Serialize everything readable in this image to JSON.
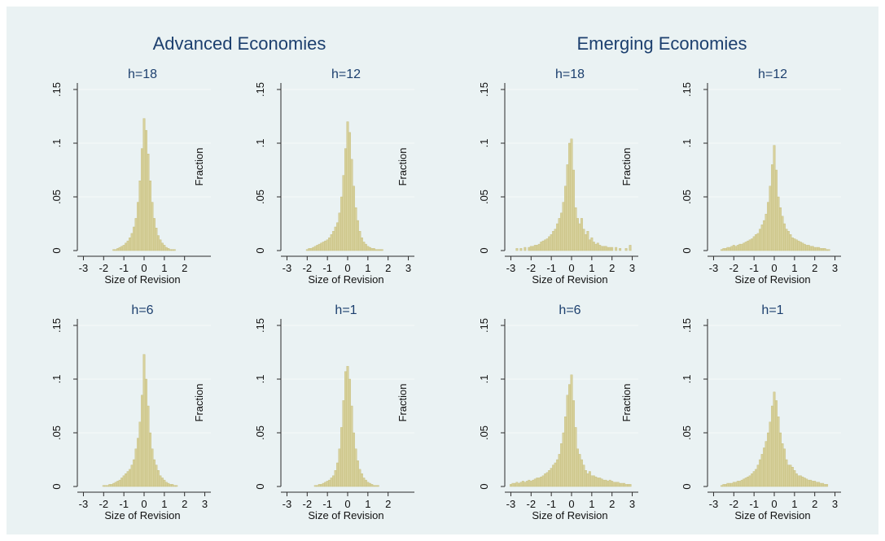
{
  "figure": {
    "group_titles": [
      "Advanced Economies",
      "Emerging Economies"
    ]
  },
  "chart_data": [
    {
      "type": "bar",
      "group": "Advanced Economies",
      "title": "h=18",
      "xlabel": "Size of Revision",
      "ylabel": "Fraction",
      "xlim": [
        -3.3,
        3.3
      ],
      "ylim": [
        0,
        0.15
      ],
      "xticks": [
        "-3",
        "-2",
        "-1",
        "0",
        "1",
        "2"
      ],
      "yticks": [
        "0",
        ".05",
        ".1",
        ".15"
      ],
      "bin_width": 0.1,
      "x": [
        -1.5,
        -1.4,
        -1.3,
        -1.2,
        -1.1,
        -1.0,
        -0.9,
        -0.8,
        -0.7,
        -0.6,
        -0.5,
        -0.4,
        -0.3,
        -0.2,
        -0.1,
        0.0,
        0.1,
        0.2,
        0.3,
        0.4,
        0.5,
        0.6,
        0.7,
        0.8,
        0.9,
        1.0,
        1.1,
        1.2,
        1.3,
        1.4,
        1.5
      ],
      "values": [
        0.001,
        0.001,
        0.002,
        0.003,
        0.004,
        0.005,
        0.007,
        0.009,
        0.012,
        0.016,
        0.022,
        0.03,
        0.045,
        0.065,
        0.095,
        0.123,
        0.112,
        0.09,
        0.065,
        0.045,
        0.03,
        0.021,
        0.014,
        0.01,
        0.007,
        0.005,
        0.003,
        0.002,
        0.001,
        0.001,
        0.001
      ]
    },
    {
      "type": "bar",
      "group": "Advanced Economies",
      "title": "h=12",
      "xlabel": "Size of Revision",
      "ylabel": "Fraction",
      "xlim": [
        -3.3,
        3.3
      ],
      "ylim": [
        0,
        0.15
      ],
      "xticks": [
        "-3",
        "-2",
        "-1",
        "0",
        "1",
        "2",
        "3"
      ],
      "yticks": [
        "0",
        ".05",
        ".1",
        ".15"
      ],
      "bin_width": 0.1,
      "x": [
        -2.0,
        -1.9,
        -1.8,
        -1.7,
        -1.6,
        -1.5,
        -1.4,
        -1.3,
        -1.2,
        -1.1,
        -1.0,
        -0.9,
        -0.8,
        -0.7,
        -0.6,
        -0.5,
        -0.4,
        -0.3,
        -0.2,
        -0.1,
        0.0,
        0.1,
        0.2,
        0.3,
        0.4,
        0.5,
        0.6,
        0.7,
        0.8,
        0.9,
        1.0,
        1.1,
        1.2,
        1.3,
        1.4,
        1.5,
        1.6,
        1.7
      ],
      "values": [
        0.001,
        0.002,
        0.002,
        0.003,
        0.004,
        0.005,
        0.006,
        0.007,
        0.008,
        0.009,
        0.01,
        0.012,
        0.015,
        0.018,
        0.022,
        0.026,
        0.035,
        0.05,
        0.07,
        0.095,
        0.12,
        0.11,
        0.085,
        0.06,
        0.04,
        0.028,
        0.018,
        0.012,
        0.008,
        0.006,
        0.004,
        0.003,
        0.002,
        0.002,
        0.001,
        0.001,
        0.001,
        0.001
      ]
    },
    {
      "type": "bar",
      "group": "Emerging Economies",
      "title": "h=18",
      "xlabel": "Size of Revision",
      "ylabel": "Fraction",
      "xlim": [
        -3.3,
        3.3
      ],
      "ylim": [
        0,
        0.15
      ],
      "xticks": [
        "-3",
        "-2",
        "-1",
        "0",
        "1",
        "2",
        "3"
      ],
      "yticks": [
        "0",
        ".05",
        ".1",
        ".15"
      ],
      "bin_width": 0.1,
      "x": [
        -2.7,
        -2.5,
        -2.3,
        -2.1,
        -2.0,
        -1.9,
        -1.8,
        -1.7,
        -1.6,
        -1.5,
        -1.4,
        -1.3,
        -1.2,
        -1.1,
        -1.0,
        -0.9,
        -0.8,
        -0.7,
        -0.6,
        -0.5,
        -0.4,
        -0.3,
        -0.2,
        -0.1,
        0.0,
        0.1,
        0.2,
        0.3,
        0.4,
        0.5,
        0.6,
        0.7,
        0.8,
        0.9,
        1.0,
        1.1,
        1.2,
        1.3,
        1.4,
        1.5,
        1.6,
        1.7,
        1.8,
        1.9,
        2.0,
        2.2,
        2.4,
        2.7,
        2.9
      ],
      "values": [
        0.002,
        0.002,
        0.003,
        0.003,
        0.004,
        0.004,
        0.005,
        0.005,
        0.006,
        0.008,
        0.009,
        0.01,
        0.011,
        0.013,
        0.015,
        0.018,
        0.02,
        0.025,
        0.03,
        0.035,
        0.045,
        0.06,
        0.08,
        0.1,
        0.104,
        0.075,
        0.04,
        0.03,
        0.025,
        0.03,
        0.02,
        0.015,
        0.018,
        0.01,
        0.012,
        0.008,
        0.006,
        0.007,
        0.005,
        0.004,
        0.004,
        0.004,
        0.003,
        0.003,
        0.003,
        0.003,
        0.002,
        0.002,
        0.005
      ]
    },
    {
      "type": "bar",
      "group": "Emerging Economies",
      "title": "h=12",
      "xlabel": "Size of Revision",
      "ylabel": "",
      "xlim": [
        -3.3,
        3.3
      ],
      "ylim": [
        0,
        0.15
      ],
      "xticks": [
        "-3",
        "-2",
        "-1",
        "0",
        "1",
        "2",
        "3"
      ],
      "yticks": [
        "0",
        ".05",
        ".1",
        ".15"
      ],
      "bin_width": 0.1,
      "x": [
        -2.6,
        -2.5,
        -2.4,
        -2.3,
        -2.2,
        -2.1,
        -2.0,
        -1.9,
        -1.8,
        -1.7,
        -1.6,
        -1.5,
        -1.4,
        -1.3,
        -1.2,
        -1.1,
        -1.0,
        -0.9,
        -0.8,
        -0.7,
        -0.6,
        -0.5,
        -0.4,
        -0.3,
        -0.2,
        -0.1,
        0.0,
        0.1,
        0.2,
        0.3,
        0.4,
        0.5,
        0.6,
        0.7,
        0.8,
        0.9,
        1.0,
        1.1,
        1.2,
        1.3,
        1.4,
        1.5,
        1.6,
        1.7,
        1.8,
        1.9,
        2.0,
        2.1,
        2.2,
        2.3,
        2.4,
        2.5,
        2.6,
        2.7
      ],
      "values": [
        0.001,
        0.002,
        0.002,
        0.003,
        0.003,
        0.004,
        0.005,
        0.004,
        0.005,
        0.006,
        0.006,
        0.007,
        0.008,
        0.009,
        0.01,
        0.011,
        0.013,
        0.015,
        0.016,
        0.02,
        0.024,
        0.028,
        0.034,
        0.045,
        0.06,
        0.08,
        0.098,
        0.075,
        0.05,
        0.04,
        0.032,
        0.025,
        0.02,
        0.018,
        0.015,
        0.012,
        0.011,
        0.01,
        0.009,
        0.008,
        0.007,
        0.006,
        0.005,
        0.005,
        0.004,
        0.004,
        0.003,
        0.003,
        0.003,
        0.002,
        0.002,
        0.002,
        0.001,
        0.001
      ]
    },
    {
      "type": "bar",
      "group": "Advanced Economies",
      "title": "h=6",
      "xlabel": "Size of Revision",
      "ylabel": "Fraction",
      "xlim": [
        -3.3,
        3.3
      ],
      "ylim": [
        0,
        0.15
      ],
      "xticks": [
        "-3",
        "-2",
        "-1",
        "0",
        "1",
        "2",
        "3"
      ],
      "yticks": [
        "0",
        ".05",
        ".1",
        ".15"
      ],
      "bin_width": 0.1,
      "x": [
        -2.0,
        -1.9,
        -1.8,
        -1.7,
        -1.6,
        -1.5,
        -1.4,
        -1.3,
        -1.2,
        -1.1,
        -1.0,
        -0.9,
        -0.8,
        -0.7,
        -0.6,
        -0.5,
        -0.4,
        -0.3,
        -0.2,
        -0.1,
        0.0,
        0.1,
        0.2,
        0.3,
        0.4,
        0.5,
        0.6,
        0.7,
        0.8,
        0.9,
        1.0,
        1.1,
        1.2,
        1.3,
        1.4,
        1.5,
        1.6
      ],
      "values": [
        0.001,
        0.001,
        0.001,
        0.002,
        0.002,
        0.003,
        0.004,
        0.005,
        0.006,
        0.008,
        0.01,
        0.012,
        0.014,
        0.016,
        0.02,
        0.025,
        0.035,
        0.045,
        0.06,
        0.085,
        0.123,
        0.1,
        0.075,
        0.05,
        0.035,
        0.025,
        0.02,
        0.015,
        0.01,
        0.008,
        0.006,
        0.004,
        0.003,
        0.002,
        0.002,
        0.001,
        0.001
      ]
    },
    {
      "type": "bar",
      "group": "Advanced Economies",
      "title": "h=1",
      "xlabel": "Size of Revision",
      "ylabel": "Fraction",
      "xlim": [
        -3.3,
        3.3
      ],
      "ylim": [
        0,
        0.15
      ],
      "xticks": [
        "-3",
        "-2",
        "-1",
        "0",
        "1",
        "2"
      ],
      "yticks": [
        "0",
        ".05",
        ".1",
        ".15"
      ],
      "bin_width": 0.1,
      "x": [
        -1.6,
        -1.5,
        -1.4,
        -1.3,
        -1.2,
        -1.1,
        -1.0,
        -0.9,
        -0.8,
        -0.7,
        -0.6,
        -0.5,
        -0.4,
        -0.3,
        -0.2,
        -0.1,
        0.0,
        0.1,
        0.2,
        0.3,
        0.4,
        0.5,
        0.6,
        0.7,
        0.8,
        0.9,
        1.0,
        1.1,
        1.2,
        1.3,
        1.4,
        1.5
      ],
      "values": [
        0.001,
        0.001,
        0.002,
        0.002,
        0.003,
        0.004,
        0.005,
        0.006,
        0.008,
        0.01,
        0.015,
        0.022,
        0.035,
        0.055,
        0.08,
        0.107,
        0.112,
        0.1,
        0.075,
        0.05,
        0.035,
        0.024,
        0.016,
        0.012,
        0.008,
        0.006,
        0.004,
        0.003,
        0.002,
        0.001,
        0.001,
        0.001
      ]
    },
    {
      "type": "bar",
      "group": "Emerging Economies",
      "title": "h=6",
      "xlabel": "Size of Revision",
      "ylabel": "Fraction",
      "xlim": [
        -3.3,
        3.3
      ],
      "ylim": [
        0,
        0.15
      ],
      "xticks": [
        "-3",
        "-2",
        "-1",
        "0",
        "1",
        "2",
        "3"
      ],
      "yticks": [
        "0",
        ".05",
        ".1",
        ".15"
      ],
      "bin_width": 0.1,
      "x": [
        -3.0,
        -2.9,
        -2.8,
        -2.7,
        -2.6,
        -2.5,
        -2.4,
        -2.3,
        -2.2,
        -2.1,
        -2.0,
        -1.9,
        -1.8,
        -1.7,
        -1.6,
        -1.5,
        -1.4,
        -1.3,
        -1.2,
        -1.1,
        -1.0,
        -0.9,
        -0.8,
        -0.7,
        -0.6,
        -0.5,
        -0.4,
        -0.3,
        -0.2,
        -0.1,
        0.0,
        0.1,
        0.2,
        0.3,
        0.4,
        0.5,
        0.6,
        0.7,
        0.8,
        0.9,
        1.0,
        1.1,
        1.2,
        1.3,
        1.4,
        1.5,
        1.6,
        1.7,
        1.8,
        1.9,
        2.0,
        2.1,
        2.2,
        2.3,
        2.4,
        2.5,
        2.6,
        2.7,
        2.8,
        2.9
      ],
      "values": [
        0.002,
        0.003,
        0.003,
        0.004,
        0.003,
        0.004,
        0.005,
        0.004,
        0.005,
        0.006,
        0.005,
        0.006,
        0.007,
        0.008,
        0.008,
        0.009,
        0.01,
        0.012,
        0.013,
        0.015,
        0.017,
        0.02,
        0.022,
        0.025,
        0.03,
        0.04,
        0.05,
        0.065,
        0.085,
        0.095,
        0.104,
        0.08,
        0.055,
        0.035,
        0.03,
        0.025,
        0.02,
        0.015,
        0.012,
        0.014,
        0.01,
        0.01,
        0.009,
        0.008,
        0.008,
        0.007,
        0.006,
        0.006,
        0.005,
        0.006,
        0.005,
        0.004,
        0.004,
        0.004,
        0.003,
        0.003,
        0.003,
        0.002,
        0.002,
        0.002
      ]
    },
    {
      "type": "bar",
      "group": "Emerging Economies",
      "title": "h=1",
      "xlabel": "Size of Revision",
      "ylabel": "",
      "xlim": [
        -3.3,
        3.3
      ],
      "ylim": [
        0,
        0.15
      ],
      "xticks": [
        "-3",
        "-2",
        "-1",
        "0",
        "1",
        "2",
        "3"
      ],
      "yticks": [
        "0",
        ".05",
        ".1",
        ".15"
      ],
      "bin_width": 0.1,
      "x": [
        -2.6,
        -2.5,
        -2.4,
        -2.3,
        -2.2,
        -2.1,
        -2.0,
        -1.9,
        -1.8,
        -1.7,
        -1.6,
        -1.5,
        -1.4,
        -1.3,
        -1.2,
        -1.1,
        -1.0,
        -0.9,
        -0.8,
        -0.7,
        -0.6,
        -0.5,
        -0.4,
        -0.3,
        -0.2,
        -0.1,
        0.0,
        0.1,
        0.2,
        0.3,
        0.4,
        0.5,
        0.6,
        0.7,
        0.8,
        0.9,
        1.0,
        1.1,
        1.2,
        1.3,
        1.4,
        1.5,
        1.6,
        1.7,
        1.8,
        1.9,
        2.0,
        2.1,
        2.2,
        2.3,
        2.4,
        2.5,
        2.6
      ],
      "values": [
        0.001,
        0.002,
        0.002,
        0.003,
        0.003,
        0.003,
        0.004,
        0.004,
        0.005,
        0.005,
        0.006,
        0.007,
        0.008,
        0.009,
        0.01,
        0.012,
        0.014,
        0.016,
        0.02,
        0.025,
        0.03,
        0.036,
        0.042,
        0.05,
        0.06,
        0.075,
        0.088,
        0.08,
        0.065,
        0.05,
        0.04,
        0.035,
        0.025,
        0.02,
        0.02,
        0.018,
        0.015,
        0.012,
        0.01,
        0.01,
        0.009,
        0.008,
        0.007,
        0.006,
        0.006,
        0.005,
        0.005,
        0.004,
        0.004,
        0.003,
        0.003,
        0.002,
        0.002
      ]
    }
  ]
}
